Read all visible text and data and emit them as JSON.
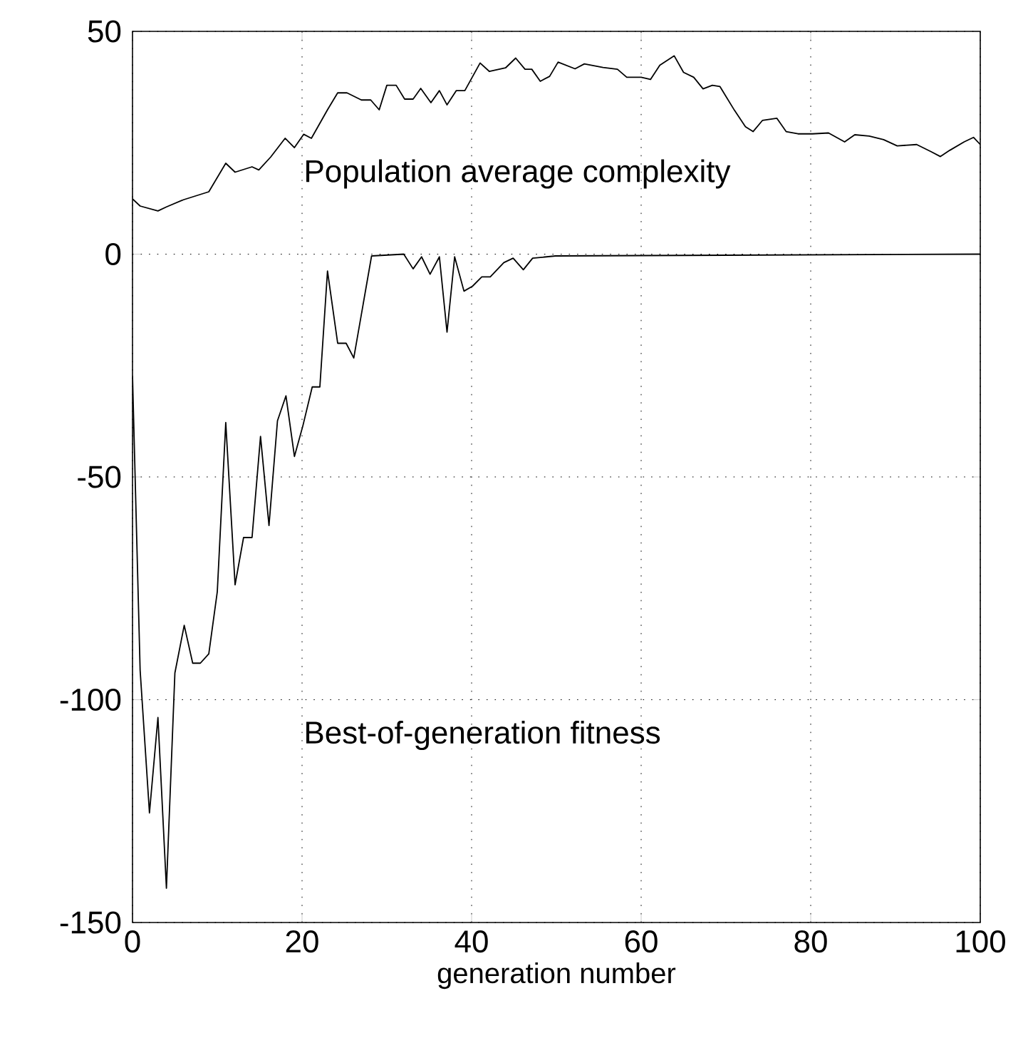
{
  "chart_data": {
    "type": "line",
    "xlabel": "generation number",
    "xlim": [
      0,
      100
    ],
    "ylim": [
      -150,
      50
    ],
    "xticks": [
      0,
      20,
      40,
      60,
      80,
      100
    ],
    "yticks": [
      -150,
      -100,
      -50,
      0,
      50
    ],
    "grid": true,
    "marker": "none",
    "line_style": "solid",
    "series": [
      {
        "color": "#000000",
        "x": [
          0,
          0.9,
          3,
          4,
          6,
          9,
          11,
          12.1,
          14.1,
          14.9,
          16.3,
          18,
          19.1,
          20.2,
          21.1,
          23,
          24.2,
          25.3,
          27,
          28.1,
          29.1,
          30,
          31.1,
          32.1,
          33.1,
          34,
          35.2,
          36.2,
          37.1,
          38.2,
          39.2,
          41,
          42.1,
          44,
          45.2,
          46.3,
          47.1,
          48.1,
          49.2,
          50.2,
          52.2,
          53.3,
          55.5,
          57.2,
          58.3,
          60,
          61.1,
          62.2,
          63.9,
          65,
          66.2,
          67.3,
          68.4,
          69.3,
          71,
          72.3,
          73.2,
          74.3,
          76,
          77.1,
          78.5,
          80.2,
          82.1,
          84,
          85.2,
          86.9,
          88.6,
          90.2,
          92.5,
          94.2,
          95.3,
          96.4,
          98.1,
          99.2,
          100
        ],
        "values": [
          12.4,
          10.8,
          9.7,
          10.6,
          12.2,
          14,
          20.4,
          18.4,
          19.6,
          18.9,
          21.8,
          26,
          23.9,
          26.9,
          26,
          32.4,
          36.2,
          36.2,
          34.6,
          34.6,
          32.4,
          37.9,
          37.9,
          34.8,
          34.8,
          37.2,
          34,
          36.7,
          33.5,
          36.7,
          36.7,
          42.9,
          41,
          41.8,
          44,
          41.5,
          41.5,
          38.8,
          39.9,
          43.1,
          41.6,
          42.7,
          41.9,
          41.5,
          39.7,
          39.7,
          39.2,
          42.4,
          44.5,
          40.8,
          39.7,
          37.1,
          37.9,
          37.6,
          32.3,
          28.6,
          27.5,
          30,
          30.5,
          27.5,
          27,
          27,
          27.2,
          25.2,
          26.8,
          26.5,
          25.7,
          24.3,
          24.6,
          23,
          21.9,
          23.3,
          25.2,
          26.2,
          24.6
        ]
      },
      {
        "color": "#000000",
        "x": [
          0,
          0.9,
          2,
          3,
          4,
          5,
          6.1,
          7.1,
          8,
          9,
          10,
          11,
          12.1,
          13.1,
          14.1,
          15.1,
          16.1,
          17.1,
          18.1,
          19.1,
          20.1,
          21.2,
          22.1,
          23,
          24.2,
          25.2,
          26.1,
          28.2,
          32,
          33.1,
          34.1,
          35.1,
          36.2,
          37.1,
          38,
          39.1,
          40.1,
          41.2,
          42.2,
          43.8,
          44.9,
          46.1,
          47.2,
          49.9,
          100
        ],
        "values": [
          -27.3,
          -93.4,
          -125.4,
          -104,
          -142.3,
          -94,
          -83.3,
          -91.8,
          -91.8,
          -89.7,
          -75.8,
          -37.8,
          -74.2,
          -63.6,
          -63.6,
          -40.9,
          -60.9,
          -37.4,
          -31.8,
          -45.4,
          -38.5,
          -29.8,
          -29.8,
          -3.8,
          -20,
          -20,
          -23.3,
          -0.4,
          0,
          -3.3,
          -0.6,
          -4.5,
          -0.6,
          -17.5,
          -0.6,
          -8.3,
          -7.2,
          -5.1,
          -5.1,
          -1.9,
          -0.9,
          -3.5,
          -0.9,
          -0.4,
          0
        ]
      }
    ],
    "annotations": [
      "Population average complexity",
      "Best-of-generation fitness"
    ]
  }
}
